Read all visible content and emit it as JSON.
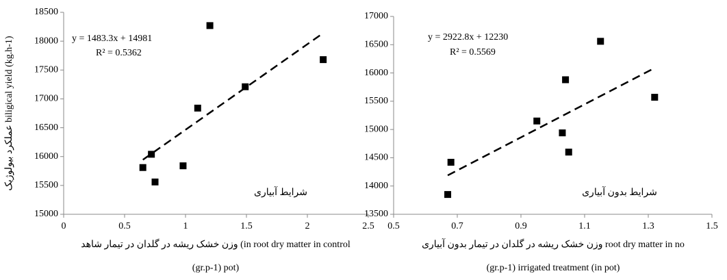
{
  "chart_data": [
    {
      "type": "scatter",
      "ylabel": "عملکرد بیولوژیک biligical yield (kg.h-1)",
      "xlabel": [
        "وزن خشک ریشه در گلدان در تیمار شاهد (in root dry matter in control",
        "(gr.p-1) pot)"
      ],
      "x": [
        0.65,
        0.72,
        0.75,
        0.98,
        1.1,
        1.2,
        1.49,
        2.13
      ],
      "values": [
        15810,
        16040,
        15560,
        15840,
        16840,
        18270,
        17210,
        17680
      ],
      "color": "#000000",
      "xlim": [
        0,
        2.5
      ],
      "xticks": [
        0,
        0.5,
        1,
        1.5,
        2,
        2.5
      ],
      "ylim": [
        15000,
        18500
      ],
      "yticks": [
        15000,
        15500,
        16000,
        16500,
        17000,
        17500,
        18000,
        18500
      ],
      "equation": "y = 1483.3x + 14981",
      "r2": "R² = 0.5362",
      "trendline": {
        "slope": 1483.3,
        "intercept": 14981
      },
      "annotation": "شرایط آبیاری"
    },
    {
      "type": "scatter",
      "xlabel": [
        "وزن خشک ریشه در گلدان در تیمار بدون آبیاری root dry matter in no",
        "(gr.p-1) irrigated treatment (in pot)"
      ],
      "x": [
        0.67,
        0.68,
        0.95,
        1.03,
        1.04,
        1.05,
        1.15,
        1.32
      ],
      "values": [
        13850,
        14420,
        15150,
        14940,
        15880,
        14600,
        16560,
        15570
      ],
      "color": "#000000",
      "xlim": [
        0.5,
        1.5
      ],
      "xticks": [
        0.5,
        0.7,
        0.9,
        1.1,
        1.3,
        1.5
      ],
      "ylim": [
        13500,
        17000
      ],
      "yticks": [
        13500,
        14000,
        14500,
        15000,
        15500,
        16000,
        16500,
        17000
      ],
      "equation": "y = 2922.8x + 12230",
      "r2": "R² = 0.5569",
      "trendline": {
        "slope": 2922.8,
        "intercept": 12230
      },
      "annotation": "شرایط بدون آبیاری"
    }
  ]
}
